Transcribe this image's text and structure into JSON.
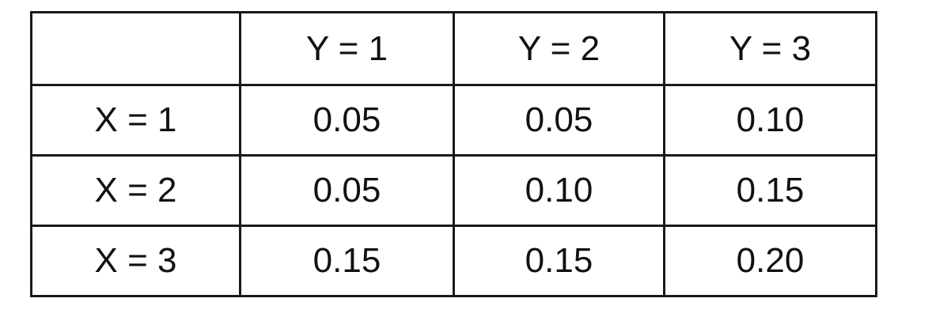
{
  "table": {
    "corner": "",
    "columns": [
      "Y = 1",
      "Y = 2",
      "Y = 3"
    ],
    "rows": [
      {
        "label": "X = 1",
        "values": [
          "0.05",
          "0.05",
          "0.10"
        ]
      },
      {
        "label": "X = 2",
        "values": [
          "0.05",
          "0.10",
          "0.15"
        ]
      },
      {
        "label": "X = 3",
        "values": [
          "0.15",
          "0.15",
          "0.20"
        ]
      }
    ]
  }
}
